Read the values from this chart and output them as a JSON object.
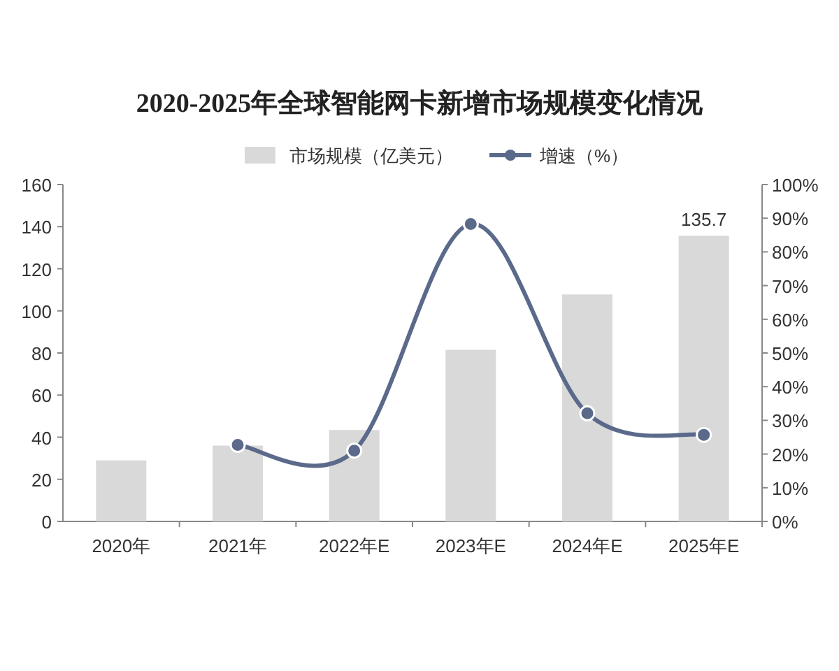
{
  "chart_data": {
    "type": "bar",
    "title": "2020-2025年全球智能网卡新增市场规模变化情况",
    "categories": [
      "2020年",
      "2021年",
      "2022年E",
      "2023年E",
      "2024年E",
      "2025年E"
    ],
    "series": [
      {
        "name": "市场规模（亿美元）",
        "color": "#d9d9d9",
        "values": [
          29,
          36,
          43.4,
          81.5,
          107.8,
          135.7
        ],
        "value_labels": [
          null,
          null,
          null,
          null,
          null,
          "135.7"
        ]
      },
      {
        "name": "增速（%）",
        "type": "line",
        "axis": "y2",
        "color": "#5b6a8a",
        "marker": "circle",
        "values": [
          null,
          22.7,
          21,
          88.3,
          32.1,
          25.7
        ]
      }
    ],
    "ylim": [
      0,
      160
    ],
    "yticks": [
      0,
      20,
      40,
      60,
      80,
      100,
      120,
      140,
      160
    ],
    "y2lim": [
      0,
      100
    ],
    "y2ticks": [
      {
        "value": 0,
        "label": "0%"
      },
      {
        "value": 10,
        "label": "10%"
      },
      {
        "value": 20,
        "label": "20%"
      },
      {
        "value": 30,
        "label": "30%"
      },
      {
        "value": 40,
        "label": "40%"
      },
      {
        "value": 50,
        "label": "50%"
      },
      {
        "value": 60,
        "label": "60%"
      },
      {
        "value": 70,
        "label": "70%"
      },
      {
        "value": 80,
        "label": "80%"
      },
      {
        "value": 90,
        "label": "90%"
      },
      {
        "value": 100,
        "label": "100%"
      }
    ],
    "legend": "top",
    "grid": false
  }
}
